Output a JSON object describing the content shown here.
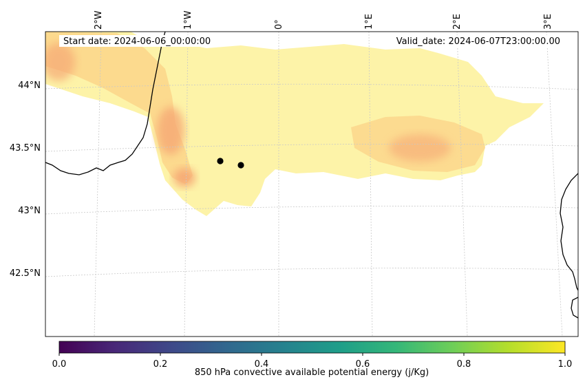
{
  "map": {
    "start_date": "Start date: 2024-06-06_00:00:00",
    "valid_date": "Valid_date: 2024-06-07T23:00:00.00",
    "longitude_labels": [
      "2°W",
      "1°W",
      "0°",
      "1°E",
      "2°E",
      "3°E"
    ],
    "latitude_labels": [
      "44°N",
      "43.5°N",
      "43°N",
      "42.5°N"
    ],
    "markers": [
      {
        "name": "marker-1"
      },
      {
        "name": "marker-2"
      }
    ],
    "colors": {
      "field_light": "#fdf3a8",
      "field_mid": "#fbd58a",
      "field_hot": "#f6a874",
      "coastline": "#000000",
      "gridline": "#c8c8c8"
    }
  },
  "colorbar": {
    "label": "850 hPa convective available potential energy (j/Kg)",
    "ticks": [
      "0.0",
      "0.2",
      "0.4",
      "0.6",
      "0.8",
      "1.0"
    ],
    "colormap": [
      "#440154",
      "#482878",
      "#3e4989",
      "#31688e",
      "#26828e",
      "#1f9e89",
      "#35b779",
      "#6ece58",
      "#b5de2b",
      "#fde725"
    ]
  }
}
